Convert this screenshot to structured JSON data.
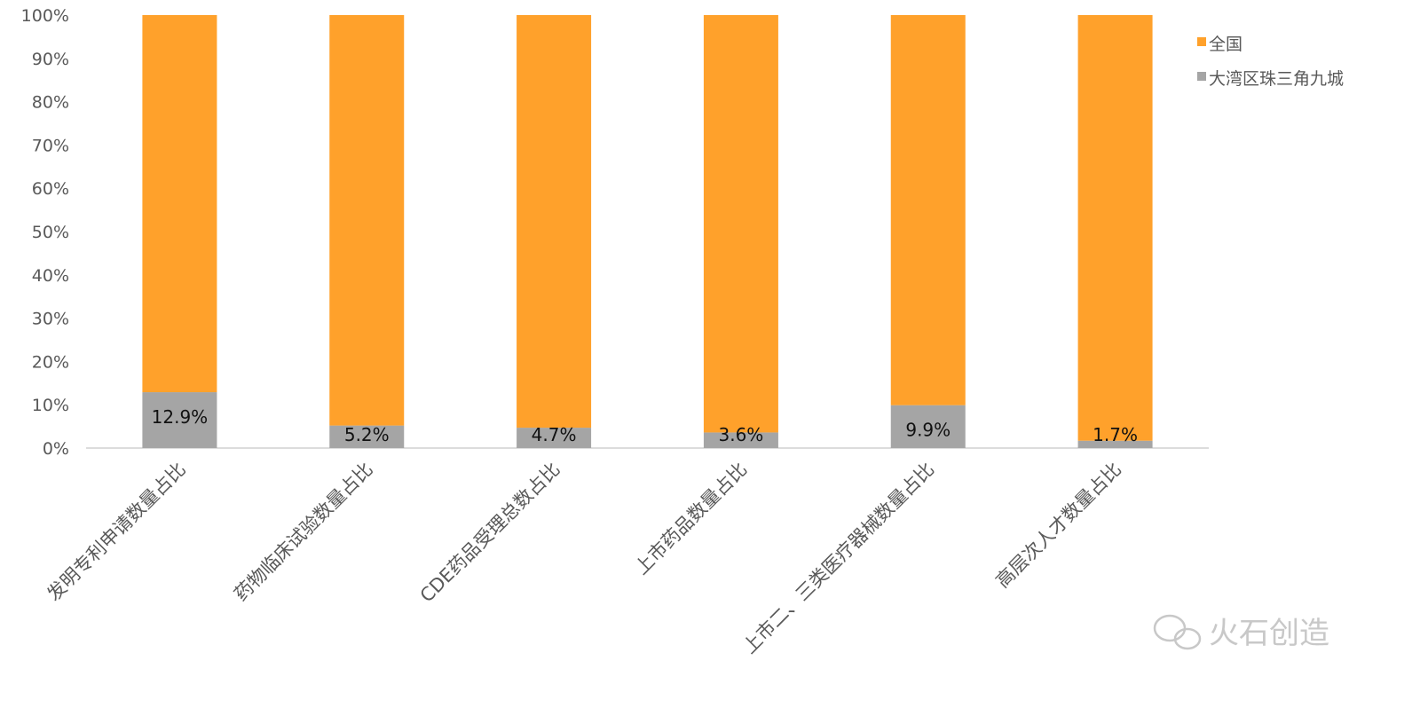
{
  "chart_data": {
    "type": "bar",
    "stacked": "percent",
    "categories": [
      "发明专利申请数量占比",
      "药物临床试验数量占比",
      "CDE药品受理总数占比",
      "上市药品数量占比",
      "上市二、三类医疗器械数量占比",
      "高层次人才数量占比"
    ],
    "series": [
      {
        "name": "全国",
        "color": "#FFA12B",
        "values": [
          87.1,
          94.8,
          95.3,
          96.4,
          90.1,
          98.3
        ]
      },
      {
        "name": "大湾区珠三角九城",
        "color": "#A5A5A5",
        "values": [
          12.9,
          5.2,
          4.7,
          3.6,
          9.9,
          1.7
        ]
      }
    ],
    "data_labels": [
      "12.9%",
      "5.2%",
      "4.7%",
      "3.6%",
      "9.9%",
      "1.7%"
    ],
    "yticks": [
      "0%",
      "10%",
      "20%",
      "30%",
      "40%",
      "50%",
      "60%",
      "70%",
      "80%",
      "90%",
      "100%"
    ],
    "ylim": [
      0,
      100
    ],
    "grid": false,
    "legend": "right"
  },
  "watermark": {
    "text": "火石创造",
    "icon": "wechat-icon"
  }
}
